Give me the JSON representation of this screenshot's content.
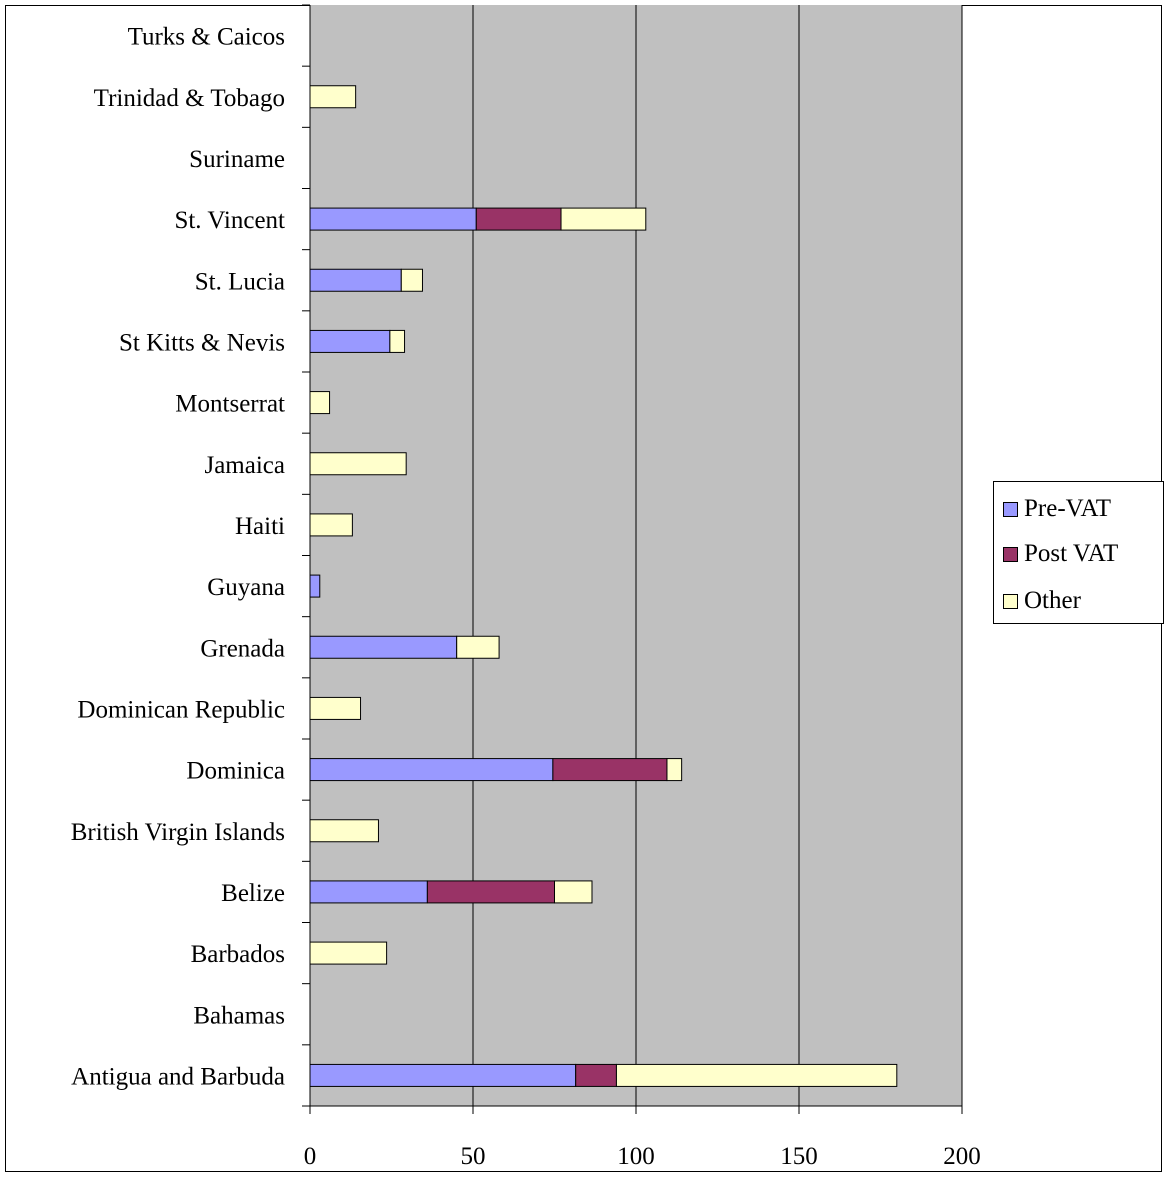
{
  "chart_data": {
    "type": "bar",
    "orientation": "horizontal",
    "stacked": true,
    "title": "",
    "xlabel": "",
    "ylabel": "",
    "xlim": [
      0,
      200
    ],
    "x_ticks": [
      0,
      50,
      100,
      150,
      200
    ],
    "grid": "vertical",
    "legend_position": "right",
    "background_color": "#c0c0c0",
    "categories": [
      "Antigua and Barbuda",
      "Bahamas",
      "Barbados",
      "Belize",
      "British Virgin Islands",
      "Dominica",
      "Dominican Republic",
      "Grenada",
      "Guyana",
      "Haiti",
      "Jamaica",
      "Montserrat",
      "St Kitts & Nevis",
      "St. Lucia",
      "St. Vincent",
      "Suriname",
      "Trinidad & Tobago",
      "Turks & Caicos"
    ],
    "series": [
      {
        "name": "Pre-VAT",
        "color": "#9999ff",
        "values": [
          81.5,
          0,
          0,
          36,
          0,
          74.5,
          0,
          45,
          3,
          0,
          0,
          0,
          24.5,
          28,
          51,
          0,
          0,
          0
        ]
      },
      {
        "name": "Post VAT",
        "color": "#993366",
        "values": [
          12.5,
          0,
          0,
          39,
          0,
          35,
          0,
          0,
          0,
          0,
          0,
          0,
          0,
          0,
          26,
          0,
          0,
          0
        ]
      },
      {
        "name": "Other",
        "color": "#ffffcc",
        "values": [
          86,
          0,
          23.5,
          11.5,
          21,
          4.5,
          15.5,
          13,
          0,
          13,
          29.5,
          6,
          4.5,
          6.5,
          26,
          0,
          14,
          0
        ]
      }
    ]
  }
}
